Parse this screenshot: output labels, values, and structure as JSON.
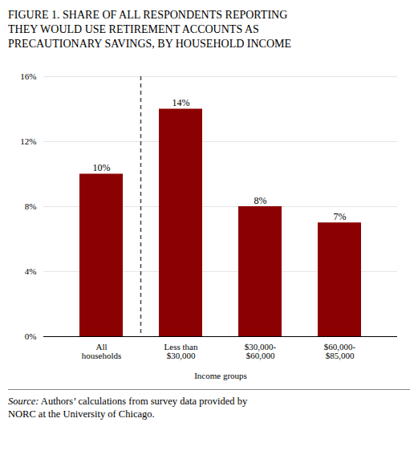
{
  "chart_data": {
    "type": "bar",
    "title": "FIGURE 1. SHARE OF ALL RESPONDENTS REPORTING\nTHEY WOULD USE RETIREMENT ACCOUNTS AS\nPRECAUTIONARY SAVINGS, BY HOUSEHOLD INCOME",
    "categories": [
      "All\nhouseholds",
      "Less than\n$30,000",
      "$30,000-\n$60,000",
      "$60,000-\n$85,000"
    ],
    "values": [
      10,
      14,
      8,
      7
    ],
    "value_labels": [
      "10%",
      "14%",
      "8%",
      "7%"
    ],
    "data_labels": true,
    "color": "#8B0000",
    "xlabel": "Income groups",
    "ylim": [
      0,
      16
    ],
    "yticks": [
      {
        "value": 0,
        "label": "0%"
      },
      {
        "value": 4,
        "label": "4%"
      },
      {
        "value": 8,
        "label": "8%"
      },
      {
        "value": 12,
        "label": "12%"
      },
      {
        "value": 16,
        "label": "16%"
      }
    ],
    "grid": true,
    "caption_label": "Source:",
    "caption": " Authors’ calculations from survey data provided by\nNORC at the University of Chicago."
  }
}
